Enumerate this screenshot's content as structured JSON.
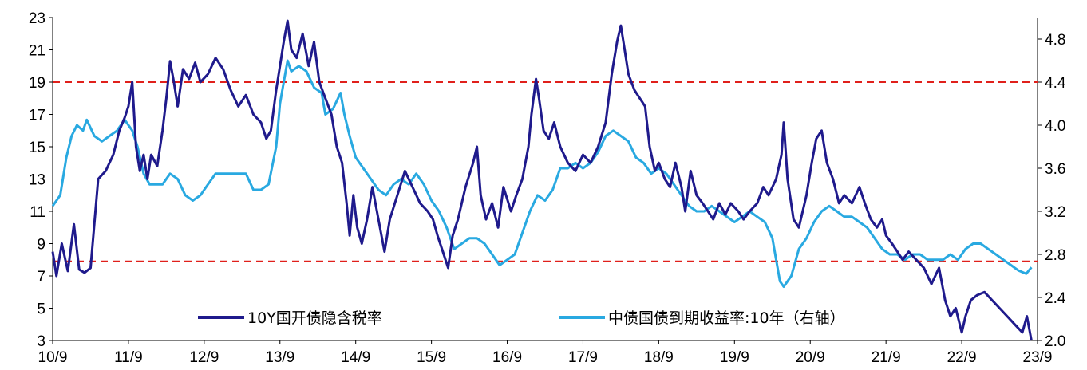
{
  "chart_data": {
    "type": "line",
    "x_ticks": [
      "10/9",
      "11/9",
      "12/9",
      "13/9",
      "14/9",
      "15/9",
      "16/9",
      "17/9",
      "18/9",
      "19/9",
      "20/9",
      "21/9",
      "22/9",
      "23/9"
    ],
    "y_left": {
      "ylim": [
        3,
        23
      ],
      "ticks": [
        "3",
        "5",
        "7",
        "9",
        "11",
        "13",
        "15",
        "17",
        "19",
        "21",
        "23"
      ]
    },
    "y_right": {
      "ylim": [
        2.0,
        5.0
      ],
      "ticks": [
        "2.0",
        "2.4",
        "2.8",
        "3.2",
        "3.6",
        "4.0",
        "4.4",
        "4.8"
      ]
    },
    "reference_lines": [
      {
        "axis": "left",
        "value": 19,
        "color": "#e0201b",
        "style": "dashed"
      },
      {
        "axis": "left",
        "value": 7.9,
        "color": "#e0201b",
        "style": "dashed"
      }
    ],
    "series": [
      {
        "name": "10Y国开债隐含税率",
        "axis": "left",
        "color": "#1f1a8c",
        "points": [
          [
            0,
            8.5
          ],
          [
            0.05,
            7.0
          ],
          [
            0.12,
            9.0
          ],
          [
            0.2,
            7.3
          ],
          [
            0.28,
            10.2
          ],
          [
            0.35,
            7.4
          ],
          [
            0.42,
            7.2
          ],
          [
            0.5,
            7.5
          ],
          [
            0.6,
            13.0
          ],
          [
            0.7,
            13.5
          ],
          [
            0.8,
            14.5
          ],
          [
            0.88,
            16.0
          ],
          [
            0.95,
            16.8
          ],
          [
            1.0,
            17.5
          ],
          [
            1.05,
            19.0
          ],
          [
            1.1,
            15.0
          ],
          [
            1.15,
            13.5
          ],
          [
            1.2,
            14.5
          ],
          [
            1.25,
            13.0
          ],
          [
            1.3,
            14.5
          ],
          [
            1.38,
            13.8
          ],
          [
            1.45,
            16.0
          ],
          [
            1.5,
            18.0
          ],
          [
            1.55,
            20.3
          ],
          [
            1.6,
            19.0
          ],
          [
            1.65,
            17.5
          ],
          [
            1.72,
            19.8
          ],
          [
            1.8,
            19.2
          ],
          [
            1.88,
            20.2
          ],
          [
            1.95,
            19.0
          ],
          [
            2.05,
            19.5
          ],
          [
            2.15,
            20.5
          ],
          [
            2.25,
            19.8
          ],
          [
            2.35,
            18.5
          ],
          [
            2.45,
            17.5
          ],
          [
            2.55,
            18.2
          ],
          [
            2.65,
            17.0
          ],
          [
            2.75,
            16.5
          ],
          [
            2.82,
            15.5
          ],
          [
            2.88,
            16.0
          ],
          [
            2.95,
            18.5
          ],
          [
            3.0,
            20.0
          ],
          [
            3.05,
            21.5
          ],
          [
            3.1,
            22.8
          ],
          [
            3.15,
            21.0
          ],
          [
            3.22,
            20.5
          ],
          [
            3.3,
            22.0
          ],
          [
            3.38,
            20.0
          ],
          [
            3.45,
            21.5
          ],
          [
            3.52,
            19.0
          ],
          [
            3.6,
            18.0
          ],
          [
            3.68,
            17.0
          ],
          [
            3.75,
            15.0
          ],
          [
            3.82,
            14.0
          ],
          [
            3.88,
            11.5
          ],
          [
            3.92,
            9.5
          ],
          [
            3.97,
            12.0
          ],
          [
            4.02,
            10.0
          ],
          [
            4.08,
            9.0
          ],
          [
            4.15,
            10.5
          ],
          [
            4.22,
            12.5
          ],
          [
            4.3,
            10.5
          ],
          [
            4.38,
            8.5
          ],
          [
            4.45,
            10.5
          ],
          [
            4.55,
            12.0
          ],
          [
            4.65,
            13.5
          ],
          [
            4.75,
            12.5
          ],
          [
            4.85,
            11.5
          ],
          [
            4.95,
            11.0
          ],
          [
            5.02,
            10.5
          ],
          [
            5.08,
            9.5
          ],
          [
            5.15,
            8.5
          ],
          [
            5.22,
            7.5
          ],
          [
            5.28,
            9.5
          ],
          [
            5.35,
            10.5
          ],
          [
            5.45,
            12.5
          ],
          [
            5.55,
            14.0
          ],
          [
            5.6,
            15.0
          ],
          [
            5.65,
            12.0
          ],
          [
            5.72,
            10.5
          ],
          [
            5.8,
            11.5
          ],
          [
            5.88,
            10.0
          ],
          [
            5.95,
            12.5
          ],
          [
            6.05,
            11.0
          ],
          [
            6.12,
            12.0
          ],
          [
            6.2,
            13.0
          ],
          [
            6.28,
            15.0
          ],
          [
            6.32,
            17.0
          ],
          [
            6.38,
            19.2
          ],
          [
            6.42,
            18.0
          ],
          [
            6.48,
            16.0
          ],
          [
            6.55,
            15.5
          ],
          [
            6.62,
            16.5
          ],
          [
            6.7,
            15.0
          ],
          [
            6.8,
            14.0
          ],
          [
            6.9,
            13.5
          ],
          [
            7.0,
            14.5
          ],
          [
            7.1,
            14.0
          ],
          [
            7.2,
            15.0
          ],
          [
            7.3,
            16.5
          ],
          [
            7.38,
            19.5
          ],
          [
            7.45,
            21.5
          ],
          [
            7.5,
            22.5
          ],
          [
            7.55,
            21.0
          ],
          [
            7.6,
            19.5
          ],
          [
            7.68,
            18.5
          ],
          [
            7.75,
            18.0
          ],
          [
            7.82,
            17.5
          ],
          [
            7.88,
            15.0
          ],
          [
            7.95,
            13.5
          ],
          [
            8.0,
            14.0
          ],
          [
            8.08,
            13.0
          ],
          [
            8.15,
            12.5
          ],
          [
            8.22,
            14.0
          ],
          [
            8.3,
            12.5
          ],
          [
            8.35,
            11.0
          ],
          [
            8.42,
            13.5
          ],
          [
            8.5,
            12.0
          ],
          [
            8.58,
            11.5
          ],
          [
            8.65,
            11.0
          ],
          [
            8.72,
            10.5
          ],
          [
            8.8,
            11.5
          ],
          [
            8.88,
            10.8
          ],
          [
            8.95,
            11.5
          ],
          [
            9.05,
            11.0
          ],
          [
            9.12,
            10.5
          ],
          [
            9.2,
            11.0
          ],
          [
            9.3,
            11.5
          ],
          [
            9.38,
            12.5
          ],
          [
            9.45,
            12.0
          ],
          [
            9.55,
            13.0
          ],
          [
            9.62,
            14.5
          ],
          [
            9.65,
            16.5
          ],
          [
            9.7,
            13.0
          ],
          [
            9.78,
            10.5
          ],
          [
            9.85,
            10.0
          ],
          [
            9.95,
            12.0
          ],
          [
            10.02,
            14.0
          ],
          [
            10.08,
            15.5
          ],
          [
            10.15,
            16.0
          ],
          [
            10.22,
            14.0
          ],
          [
            10.3,
            13.0
          ],
          [
            10.38,
            11.5
          ],
          [
            10.45,
            12.0
          ],
          [
            10.55,
            11.5
          ],
          [
            10.65,
            12.5
          ],
          [
            10.72,
            11.5
          ],
          [
            10.8,
            10.5
          ],
          [
            10.88,
            10.0
          ],
          [
            10.95,
            10.5
          ],
          [
            11.0,
            9.5
          ],
          [
            11.08,
            9.0
          ],
          [
            11.15,
            8.5
          ],
          [
            11.22,
            8.0
          ],
          [
            11.3,
            8.5
          ],
          [
            11.4,
            8.0
          ],
          [
            11.5,
            7.5
          ],
          [
            11.6,
            6.5
          ],
          [
            11.7,
            7.5
          ],
          [
            11.78,
            5.5
          ],
          [
            11.85,
            4.5
          ],
          [
            11.92,
            5.0
          ],
          [
            12.0,
            3.5
          ],
          [
            12.05,
            4.5
          ],
          [
            12.12,
            5.5
          ],
          [
            12.2,
            5.8
          ],
          [
            12.3,
            6.0
          ],
          [
            12.4,
            5.5
          ],
          [
            12.5,
            5.0
          ],
          [
            12.6,
            4.5
          ],
          [
            12.7,
            4.0
          ],
          [
            12.8,
            3.5
          ],
          [
            12.86,
            4.5
          ],
          [
            12.92,
            3.0
          ]
        ]
      },
      {
        "name": "中债国债到期收益率:10年（右轴）",
        "axis": "right",
        "color": "#29a9e1",
        "points": [
          [
            0,
            3.25
          ],
          [
            0.1,
            3.35
          ],
          [
            0.18,
            3.7
          ],
          [
            0.25,
            3.9
          ],
          [
            0.32,
            4.0
          ],
          [
            0.4,
            3.95
          ],
          [
            0.45,
            4.05
          ],
          [
            0.55,
            3.9
          ],
          [
            0.65,
            3.85
          ],
          [
            0.75,
            3.9
          ],
          [
            0.85,
            3.95
          ],
          [
            0.95,
            4.05
          ],
          [
            1.05,
            3.95
          ],
          [
            1.12,
            3.8
          ],
          [
            1.2,
            3.55
          ],
          [
            1.28,
            3.45
          ],
          [
            1.35,
            3.45
          ],
          [
            1.45,
            3.45
          ],
          [
            1.55,
            3.55
          ],
          [
            1.65,
            3.5
          ],
          [
            1.75,
            3.35
          ],
          [
            1.85,
            3.3
          ],
          [
            1.95,
            3.35
          ],
          [
            2.05,
            3.45
          ],
          [
            2.15,
            3.55
          ],
          [
            2.3,
            3.55
          ],
          [
            2.45,
            3.55
          ],
          [
            2.55,
            3.55
          ],
          [
            2.65,
            3.4
          ],
          [
            2.75,
            3.4
          ],
          [
            2.85,
            3.45
          ],
          [
            2.95,
            3.8
          ],
          [
            3.0,
            4.2
          ],
          [
            3.05,
            4.4
          ],
          [
            3.1,
            4.6
          ],
          [
            3.15,
            4.5
          ],
          [
            3.25,
            4.55
          ],
          [
            3.35,
            4.5
          ],
          [
            3.45,
            4.35
          ],
          [
            3.55,
            4.3
          ],
          [
            3.6,
            4.1
          ],
          [
            3.7,
            4.15
          ],
          [
            3.8,
            4.3
          ],
          [
            3.85,
            4.1
          ],
          [
            3.92,
            3.9
          ],
          [
            4.0,
            3.7
          ],
          [
            4.1,
            3.6
          ],
          [
            4.2,
            3.5
          ],
          [
            4.3,
            3.4
          ],
          [
            4.4,
            3.35
          ],
          [
            4.5,
            3.45
          ],
          [
            4.6,
            3.5
          ],
          [
            4.7,
            3.45
          ],
          [
            4.8,
            3.55
          ],
          [
            4.9,
            3.45
          ],
          [
            5.0,
            3.3
          ],
          [
            5.1,
            3.2
          ],
          [
            5.2,
            3.05
          ],
          [
            5.3,
            2.85
          ],
          [
            5.4,
            2.9
          ],
          [
            5.5,
            2.95
          ],
          [
            5.6,
            2.95
          ],
          [
            5.7,
            2.9
          ],
          [
            5.8,
            2.8
          ],
          [
            5.9,
            2.7
          ],
          [
            6.0,
            2.75
          ],
          [
            6.1,
            2.8
          ],
          [
            6.2,
            3.0
          ],
          [
            6.3,
            3.2
          ],
          [
            6.4,
            3.35
          ],
          [
            6.5,
            3.3
          ],
          [
            6.6,
            3.4
          ],
          [
            6.7,
            3.6
          ],
          [
            6.8,
            3.6
          ],
          [
            6.9,
            3.65
          ],
          [
            7.0,
            3.6
          ],
          [
            7.1,
            3.65
          ],
          [
            7.2,
            3.75
          ],
          [
            7.3,
            3.9
          ],
          [
            7.4,
            3.95
          ],
          [
            7.5,
            3.9
          ],
          [
            7.6,
            3.85
          ],
          [
            7.7,
            3.7
          ],
          [
            7.8,
            3.65
          ],
          [
            7.9,
            3.55
          ],
          [
            8.0,
            3.6
          ],
          [
            8.1,
            3.55
          ],
          [
            8.2,
            3.45
          ],
          [
            8.3,
            3.35
          ],
          [
            8.4,
            3.25
          ],
          [
            8.5,
            3.2
          ],
          [
            8.6,
            3.2
          ],
          [
            8.7,
            3.25
          ],
          [
            8.8,
            3.2
          ],
          [
            8.9,
            3.15
          ],
          [
            9.0,
            3.1
          ],
          [
            9.1,
            3.15
          ],
          [
            9.2,
            3.2
          ],
          [
            9.3,
            3.15
          ],
          [
            9.4,
            3.1
          ],
          [
            9.5,
            2.95
          ],
          [
            9.55,
            2.75
          ],
          [
            9.6,
            2.55
          ],
          [
            9.65,
            2.5
          ],
          [
            9.75,
            2.6
          ],
          [
            9.85,
            2.85
          ],
          [
            9.95,
            2.95
          ],
          [
            10.05,
            3.1
          ],
          [
            10.15,
            3.2
          ],
          [
            10.25,
            3.25
          ],
          [
            10.35,
            3.2
          ],
          [
            10.45,
            3.15
          ],
          [
            10.55,
            3.15
          ],
          [
            10.65,
            3.1
          ],
          [
            10.75,
            3.05
          ],
          [
            10.85,
            2.95
          ],
          [
            10.95,
            2.85
          ],
          [
            11.05,
            2.8
          ],
          [
            11.15,
            2.8
          ],
          [
            11.25,
            2.75
          ],
          [
            11.35,
            2.8
          ],
          [
            11.45,
            2.8
          ],
          [
            11.55,
            2.75
          ],
          [
            11.65,
            2.75
          ],
          [
            11.75,
            2.75
          ],
          [
            11.85,
            2.8
          ],
          [
            11.95,
            2.75
          ],
          [
            12.05,
            2.85
          ],
          [
            12.15,
            2.9
          ],
          [
            12.25,
            2.9
          ],
          [
            12.35,
            2.85
          ],
          [
            12.45,
            2.8
          ],
          [
            12.55,
            2.75
          ],
          [
            12.65,
            2.7
          ],
          [
            12.75,
            2.65
          ],
          [
            12.85,
            2.62
          ],
          [
            12.92,
            2.68
          ]
        ]
      }
    ],
    "legend_placement": "bottom-center",
    "grid": false
  }
}
